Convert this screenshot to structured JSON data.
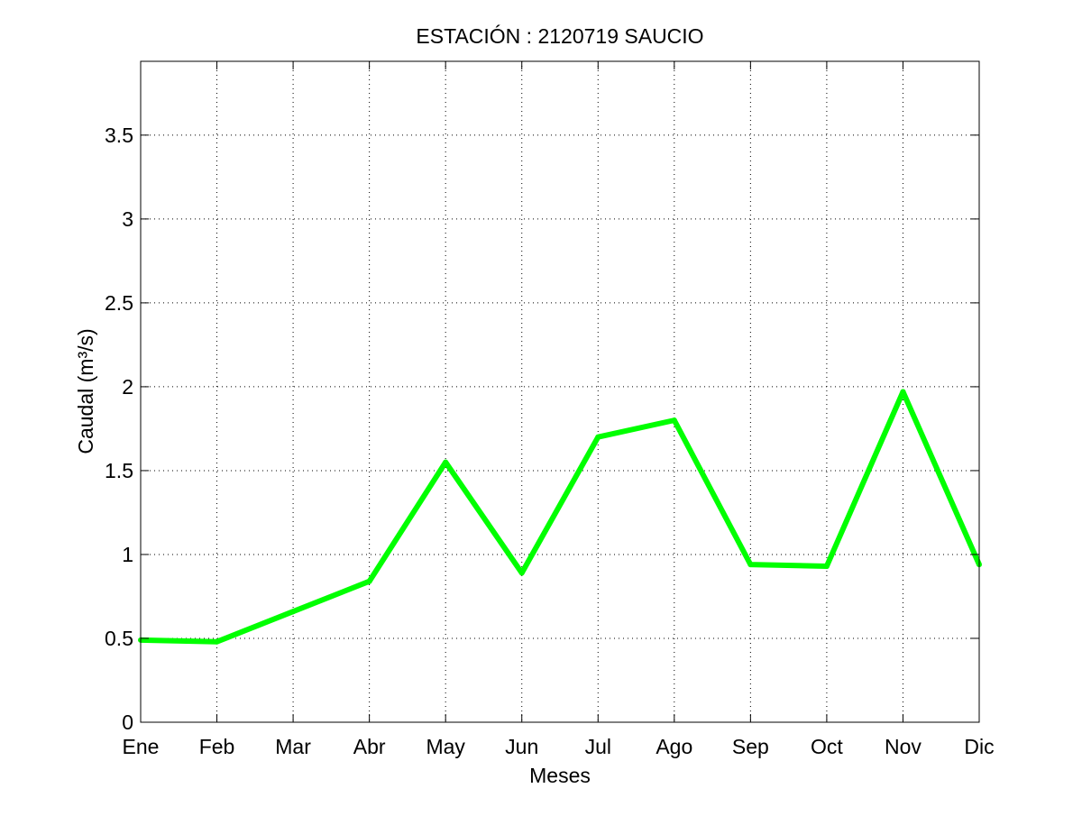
{
  "chart_data": {
    "type": "line",
    "title": "ESTACIÓN :  2120719  SAUCIO",
    "xlabel": "Meses",
    "ylabel": "Caudal (m³/s)",
    "categories": [
      "Ene",
      "Feb",
      "Mar",
      "Abr",
      "May",
      "Jun",
      "Jul",
      "Ago",
      "Sep",
      "Oct",
      "Nov",
      "Dic"
    ],
    "series": [
      {
        "values": [
          0.49,
          0.48,
          0.66,
          0.84,
          1.55,
          0.89,
          1.7,
          1.8,
          0.94,
          0.93,
          1.97,
          0.94
        ],
        "color": "#00ff00"
      }
    ],
    "ylim": [
      0,
      3.94
    ],
    "yticks": [
      0,
      0.5,
      1,
      1.5,
      2,
      2.5,
      3,
      3.5
    ],
    "ytick_labels": [
      "0",
      "0.5",
      "1",
      "1.5",
      "2",
      "2.5",
      "3",
      "3.5"
    ],
    "grid": true,
    "grid_style": "dotted"
  }
}
